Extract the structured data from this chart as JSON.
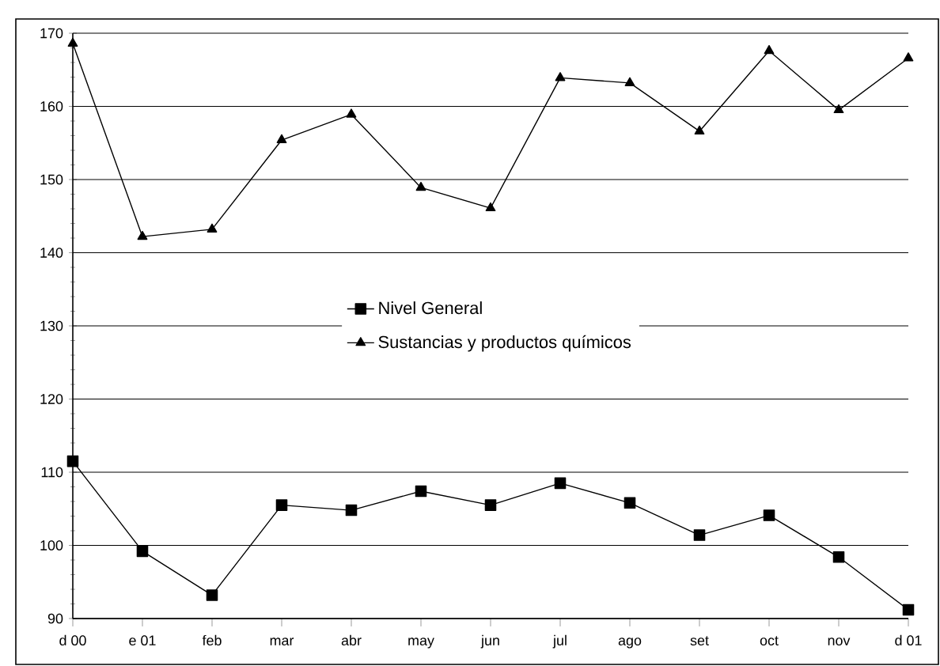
{
  "chart_data": {
    "type": "line",
    "categories": [
      "d 00",
      "e 01",
      "feb",
      "mar",
      "abr",
      "may",
      "jun",
      "jul",
      "ago",
      "set",
      "oct",
      "nov",
      "d 01"
    ],
    "series": [
      {
        "name": "Nivel General",
        "color": "#000000",
        "marker": "square",
        "values": [
          111.5,
          99.2,
          93.2,
          105.5,
          104.8,
          107.4,
          105.5,
          108.5,
          105.8,
          101.4,
          104.1,
          98.4,
          91.2
        ]
      },
      {
        "name": "Sustancias y productos químicos",
        "color": "#000000",
        "marker": "triangle",
        "values": [
          168.6,
          142.2,
          143.2,
          155.4,
          158.9,
          148.9,
          146.1,
          163.9,
          163.2,
          156.6,
          167.6,
          159.5,
          166.6
        ]
      }
    ],
    "ylim": [
      90,
      170
    ],
    "yticks": [
      90,
      100,
      110,
      120,
      130,
      140,
      150,
      160,
      170
    ],
    "grid": "y",
    "legend": "center",
    "line_style": "solid"
  }
}
